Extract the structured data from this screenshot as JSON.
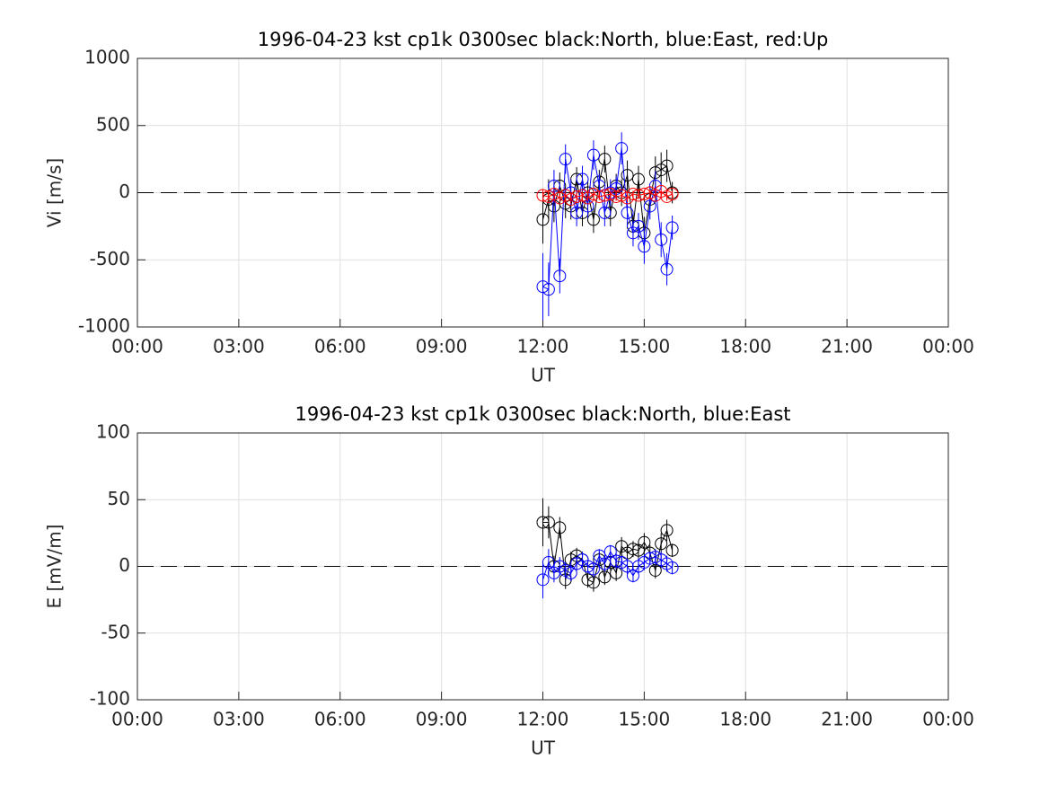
{
  "chart_data": [
    {
      "type": "line",
      "title": "1996-04-23 kst cp1k 0300sec black:North, blue:East, red:Up",
      "xlabel": "UT",
      "ylabel": "Vi [m/s]",
      "x": [
        12,
        12.17,
        12.33,
        12.5,
        12.67,
        12.83,
        13,
        13.17,
        13.33,
        13.5,
        13.67,
        13.83,
        14,
        14.17,
        14.33,
        14.5,
        14.67,
        14.83,
        15,
        15.17,
        15.33,
        15.5,
        15.67,
        15.83
      ],
      "series": [
        {
          "name": "North",
          "color": "#000000",
          "values": [
            -200,
            -50,
            -100,
            50,
            -80,
            -100,
            100,
            -150,
            0,
            -200,
            80,
            250,
            -150,
            50,
            0,
            130,
            -250,
            100,
            -300,
            -50,
            150,
            170,
            200,
            0
          ],
          "errors": [
            180,
            150,
            120,
            100,
            110,
            100,
            90,
            100,
            90,
            100,
            90,
            100,
            100,
            90,
            100,
            110,
            100,
            100,
            120,
            100,
            120,
            130,
            120,
            80
          ]
        },
        {
          "name": "East",
          "color": "#0000ff",
          "values": [
            -700,
            -720,
            50,
            -620,
            250,
            0,
            -150,
            100,
            -100,
            280,
            50,
            -150,
            0,
            30,
            330,
            -150,
            -300,
            -250,
            -400,
            -100,
            50,
            -350,
            -570,
            -260
          ],
          "errors": [
            250,
            200,
            120,
            130,
            110,
            100,
            100,
            100,
            90,
            110,
            90,
            100,
            100,
            90,
            120,
            110,
            100,
            100,
            130,
            100,
            110,
            130,
            120,
            90
          ]
        },
        {
          "name": "Up",
          "color": "#ff0000",
          "values": [
            -20,
            -30,
            -10,
            -40,
            -20,
            -50,
            -30,
            -20,
            -40,
            -10,
            -30,
            -20,
            -10,
            -30,
            -20,
            -40,
            -10,
            -20,
            -10,
            0,
            -20,
            10,
            -30,
            -10
          ],
          "errors": [
            40,
            35,
            30,
            30,
            30,
            30,
            25,
            30,
            25,
            30,
            25,
            30,
            25,
            30,
            25,
            30,
            25,
            30,
            30,
            25,
            30,
            30,
            30,
            25
          ]
        }
      ],
      "xlim": [
        0,
        24
      ],
      "xticks": [
        {
          "value": 0,
          "label": "00:00"
        },
        {
          "value": 3,
          "label": "03:00"
        },
        {
          "value": 6,
          "label": "06:00"
        },
        {
          "value": 9,
          "label": "09:00"
        },
        {
          "value": 12,
          "label": "12:00"
        },
        {
          "value": 15,
          "label": "15:00"
        },
        {
          "value": 18,
          "label": "18:00"
        },
        {
          "value": 21,
          "label": "21:00"
        },
        {
          "value": 24,
          "label": "00:00"
        }
      ],
      "ylim": [
        -1000,
        1000
      ],
      "yticks": [
        -1000,
        -500,
        0,
        500,
        1000
      ],
      "grid": true,
      "reference_line": 0
    },
    {
      "type": "line",
      "title": "1996-04-23 kst cp1k 0300sec black:North, blue:East",
      "xlabel": "UT",
      "ylabel": "E [mV/m]",
      "x": [
        12,
        12.17,
        12.33,
        12.5,
        12.67,
        12.83,
        13,
        13.17,
        13.33,
        13.5,
        13.67,
        13.83,
        14,
        14.17,
        14.33,
        14.5,
        14.67,
        14.83,
        15,
        15.17,
        15.33,
        15.5,
        15.67,
        15.83
      ],
      "series": [
        {
          "name": "North",
          "color": "#000000",
          "values": [
            33,
            33,
            0,
            29,
            -10,
            5,
            8,
            5,
            -10,
            -12,
            5,
            -8,
            3,
            -5,
            15,
            10,
            13,
            12,
            18,
            10,
            -3,
            17,
            27,
            12
          ],
          "errors": [
            18,
            12,
            8,
            8,
            7,
            6,
            6,
            6,
            6,
            7,
            6,
            6,
            6,
            6,
            7,
            6,
            6,
            6,
            7,
            6,
            6,
            8,
            8,
            5
          ]
        },
        {
          "name": "East",
          "color": "#0000ff",
          "values": [
            -10,
            3,
            -5,
            0,
            -3,
            -5,
            2,
            5,
            0,
            -2,
            8,
            2,
            11,
            4,
            3,
            0,
            -7,
            0,
            3,
            6,
            7,
            5,
            2,
            -1
          ],
          "errors": [
            14,
            10,
            7,
            7,
            6,
            6,
            5,
            6,
            5,
            6,
            5,
            6,
            5,
            6,
            5,
            6,
            5,
            6,
            6,
            5,
            6,
            6,
            6,
            5
          ]
        }
      ],
      "xlim": [
        0,
        24
      ],
      "xticks": [
        {
          "value": 0,
          "label": "00:00"
        },
        {
          "value": 3,
          "label": "03:00"
        },
        {
          "value": 6,
          "label": "06:00"
        },
        {
          "value": 9,
          "label": "09:00"
        },
        {
          "value": 12,
          "label": "12:00"
        },
        {
          "value": 15,
          "label": "15:00"
        },
        {
          "value": 18,
          "label": "18:00"
        },
        {
          "value": 21,
          "label": "21:00"
        },
        {
          "value": 24,
          "label": "00:00"
        }
      ],
      "ylim": [
        -100,
        100
      ],
      "yticks": [
        -100,
        -50,
        0,
        50,
        100
      ],
      "grid": true,
      "reference_line": 0
    }
  ]
}
